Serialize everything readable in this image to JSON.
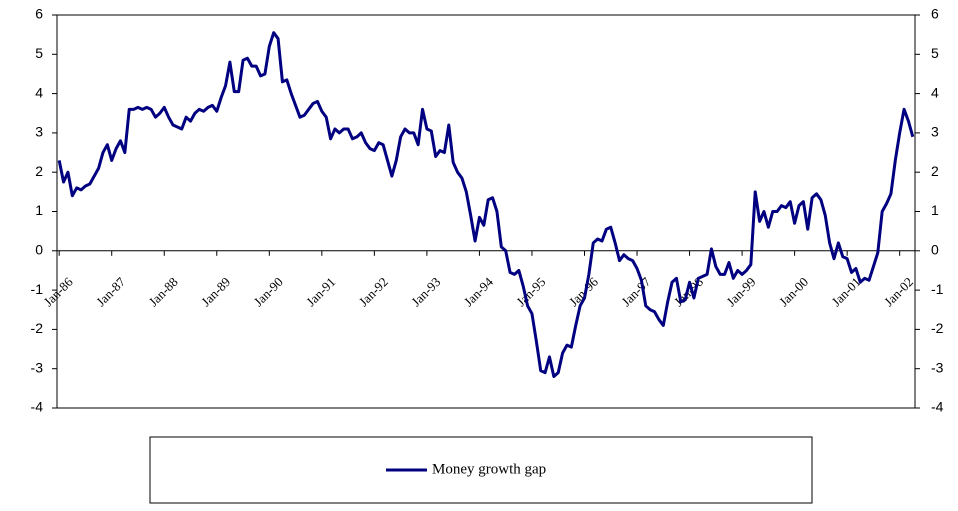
{
  "chart_data": {
    "type": "line",
    "categories": [
      "Jan-86",
      null,
      null,
      null,
      null,
      null,
      null,
      null,
      null,
      null,
      null,
      null,
      "Jan-87",
      null,
      null,
      null,
      null,
      null,
      null,
      null,
      null,
      null,
      null,
      null,
      "Jan-88",
      null,
      null,
      null,
      null,
      null,
      null,
      null,
      null,
      null,
      null,
      null,
      "Jan-89",
      null,
      null,
      null,
      null,
      null,
      null,
      null,
      null,
      null,
      null,
      null,
      "Jan-90",
      null,
      null,
      null,
      null,
      null,
      null,
      null,
      null,
      null,
      null,
      null,
      "Jan-91",
      null,
      null,
      null,
      null,
      null,
      null,
      null,
      null,
      null,
      null,
      null,
      "Jan-92",
      null,
      null,
      null,
      null,
      null,
      null,
      null,
      null,
      null,
      null,
      null,
      "Jan-93",
      null,
      null,
      null,
      null,
      null,
      null,
      null,
      null,
      null,
      null,
      null,
      "Jan-94",
      null,
      null,
      null,
      null,
      null,
      null,
      null,
      null,
      null,
      null,
      null,
      "Jan-95",
      null,
      null,
      null,
      null,
      null,
      null,
      null,
      null,
      null,
      null,
      null,
      "Jan-96",
      null,
      null,
      null,
      null,
      null,
      null,
      null,
      null,
      null,
      null,
      null,
      "Jan-97",
      null,
      null,
      null,
      null,
      null,
      null,
      null,
      null,
      null,
      null,
      null,
      "Jan-98",
      null,
      null,
      null,
      null,
      null,
      null,
      null,
      null,
      null,
      null,
      null,
      "Jan-99",
      null,
      null,
      null,
      null,
      null,
      null,
      null,
      null,
      null,
      null,
      null,
      "Jan-00",
      null,
      null,
      null,
      null,
      null,
      null,
      null,
      null,
      null,
      null,
      null,
      "Jan-01",
      null,
      null,
      null,
      null,
      null,
      null,
      null,
      null,
      null,
      null,
      null,
      "Jan-02",
      null,
      null,
      null
    ],
    "series": [
      {
        "name": "Money growth gap",
        "color": "#000080",
        "values": [
          2.3,
          1.75,
          2.0,
          1.4,
          1.6,
          1.55,
          1.65,
          1.7,
          1.9,
          2.1,
          2.5,
          2.7,
          2.3,
          2.6,
          2.8,
          2.5,
          3.6,
          3.6,
          3.65,
          3.6,
          3.65,
          3.6,
          3.4,
          3.5,
          3.65,
          3.4,
          3.2,
          3.15,
          3.1,
          3.4,
          3.3,
          3.5,
          3.6,
          3.55,
          3.65,
          3.7,
          3.55,
          3.9,
          4.2,
          4.8,
          4.05,
          4.05,
          4.85,
          4.9,
          4.7,
          4.7,
          4.45,
          4.5,
          5.2,
          5.55,
          5.4,
          4.3,
          4.35,
          4.0,
          3.7,
          3.4,
          3.45,
          3.6,
          3.75,
          3.8,
          3.55,
          3.4,
          2.85,
          3.1,
          3.0,
          3.1,
          3.1,
          2.85,
          2.9,
          3.0,
          2.75,
          2.6,
          2.55,
          2.75,
          2.7,
          2.3,
          1.9,
          2.3,
          2.9,
          3.1,
          3.0,
          3.0,
          2.7,
          3.6,
          3.1,
          3.05,
          2.4,
          2.55,
          2.5,
          3.2,
          2.25,
          2.0,
          1.85,
          1.5,
          0.9,
          0.25,
          0.85,
          0.65,
          1.3,
          1.35,
          1.0,
          0.1,
          0.0,
          -0.55,
          -0.6,
          -0.5,
          -0.9,
          -1.4,
          -1.6,
          -2.3,
          -3.05,
          -3.1,
          -2.7,
          -3.2,
          -3.1,
          -2.6,
          -2.4,
          -2.45,
          -1.9,
          -1.4,
          -1.2,
          -0.6,
          0.2,
          0.3,
          0.25,
          0.55,
          0.6,
          0.2,
          -0.25,
          -0.1,
          -0.2,
          -0.25,
          -0.45,
          -0.75,
          -1.4,
          -1.5,
          -1.55,
          -1.75,
          -1.9,
          -1.3,
          -0.8,
          -0.7,
          -1.3,
          -1.25,
          -0.8,
          -1.2,
          -0.7,
          -0.65,
          -0.6,
          0.05,
          -0.4,
          -0.6,
          -0.6,
          -0.3,
          -0.7,
          -0.5,
          -0.6,
          -0.5,
          -0.35,
          1.5,
          0.75,
          1.0,
          0.6,
          1.0,
          1.0,
          1.15,
          1.1,
          1.25,
          0.7,
          1.15,
          1.25,
          0.55,
          1.35,
          1.45,
          1.3,
          0.9,
          0.2,
          -0.2,
          0.2,
          -0.15,
          -0.2,
          -0.55,
          -0.45,
          -0.8,
          -0.7,
          -0.75,
          -0.4,
          -0.05,
          1.0,
          1.2,
          1.45,
          2.3,
          3.0,
          3.6,
          3.3,
          2.9
        ]
      }
    ],
    "ylim": [
      -4,
      6
    ],
    "yticks": [
      -4,
      -3,
      -2,
      -1,
      0,
      1,
      2,
      3,
      4,
      5,
      6
    ],
    "y2lim": [
      -4,
      6
    ],
    "y2ticks": [
      -4,
      -3,
      -2,
      -1,
      0,
      1,
      2,
      3,
      4,
      5,
      6
    ],
    "grid": false,
    "legend": "bottom"
  }
}
